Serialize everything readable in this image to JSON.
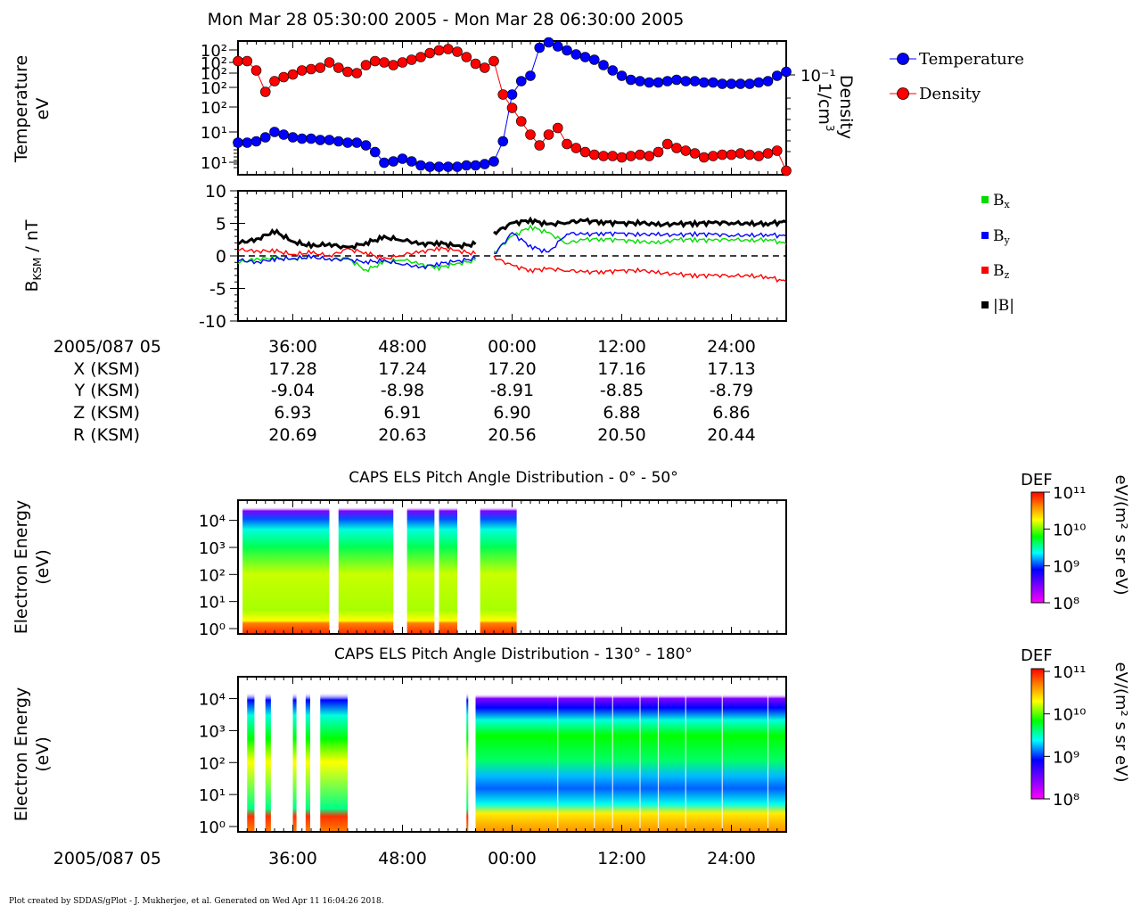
{
  "page_title": "Mon Mar 28 05:30:00 2005 - Mon Mar 28 06:30:00 2005",
  "footer": "Plot created by SDDAS/gPlot - J. Mukherjee, et al.  Generated on Wed Apr 11 16:04:26 2018.",
  "colors": {
    "temperature": "#0000ff",
    "density": "#ff0000",
    "bx": "#00dd00",
    "by": "#0000ff",
    "bz": "#ff0000",
    "bmag": "#000000"
  },
  "chart_data": [
    {
      "type": "scatter",
      "panel": "plasma-moments",
      "ylabel_left": [
        "Temperature",
        "eV"
      ],
      "ylabel_right": [
        "Density",
        "1/cm³"
      ],
      "left_tick_labels": [
        "10²",
        "10²",
        "10²",
        "10²",
        "10²",
        "10¹",
        "10¹"
      ],
      "right_tick_labels": [
        "10⁻¹"
      ],
      "legend_position": "right",
      "series": [
        {
          "name": "Temperature",
          "marker": "circle",
          "x": [
            0,
            1,
            2,
            3,
            4,
            5,
            6,
            7,
            8,
            9,
            10,
            11,
            12,
            13,
            14,
            15,
            16,
            17,
            18,
            19,
            20,
            21,
            22,
            23,
            24,
            25,
            26,
            27,
            28,
            29,
            30,
            31,
            32,
            33,
            34,
            35,
            36,
            37,
            38,
            39,
            40,
            41,
            42,
            43,
            44,
            45,
            46,
            47,
            48,
            49,
            50,
            51,
            52,
            53,
            54,
            55,
            56,
            57,
            58,
            59,
            60
          ],
          "y": [
            0.24,
            0.24,
            0.25,
            0.28,
            0.32,
            0.3,
            0.28,
            0.27,
            0.27,
            0.26,
            0.26,
            0.25,
            0.24,
            0.24,
            0.22,
            0.17,
            0.09,
            0.1,
            0.12,
            0.1,
            0.07,
            0.06,
            0.06,
            0.06,
            0.06,
            0.07,
            0.07,
            0.08,
            0.1,
            0.25,
            0.6,
            0.7,
            0.74,
            0.95,
            0.99,
            0.96,
            0.93,
            0.9,
            0.88,
            0.86,
            0.82,
            0.78,
            0.74,
            0.71,
            0.7,
            0.69,
            0.69,
            0.7,
            0.71,
            0.7,
            0.7,
            0.69,
            0.69,
            0.68,
            0.68,
            0.68,
            0.68,
            0.69,
            0.7,
            0.74,
            0.77
          ]
        },
        {
          "name": "Density",
          "marker": "circle",
          "x": [
            0,
            1,
            2,
            3,
            4,
            5,
            6,
            7,
            8,
            9,
            10,
            11,
            12,
            13,
            14,
            15,
            16,
            17,
            18,
            19,
            20,
            21,
            22,
            23,
            24,
            25,
            26,
            27,
            28,
            29,
            30,
            31,
            32,
            33,
            34,
            35,
            36,
            37,
            38,
            39,
            40,
            41,
            42,
            43,
            44,
            45,
            46,
            47,
            48,
            49,
            50,
            51,
            52,
            53,
            54,
            55,
            56,
            57,
            58,
            59,
            60
          ],
          "y": [
            0.85,
            0.85,
            0.78,
            0.62,
            0.7,
            0.73,
            0.75,
            0.78,
            0.79,
            0.8,
            0.84,
            0.8,
            0.77,
            0.76,
            0.82,
            0.85,
            0.84,
            0.82,
            0.84,
            0.86,
            0.88,
            0.91,
            0.93,
            0.94,
            0.92,
            0.88,
            0.83,
            0.8,
            0.85,
            0.6,
            0.5,
            0.4,
            0.3,
            0.22,
            0.3,
            0.35,
            0.23,
            0.2,
            0.17,
            0.15,
            0.14,
            0.14,
            0.13,
            0.14,
            0.15,
            0.14,
            0.17,
            0.23,
            0.2,
            0.18,
            0.16,
            0.13,
            0.14,
            0.15,
            0.15,
            0.16,
            0.15,
            0.14,
            0.16,
            0.18,
            0.03
          ]
        }
      ]
    },
    {
      "type": "line",
      "panel": "magnetic-field",
      "ylabel": "B_KSM / nT",
      "ylim": [
        -10,
        10
      ],
      "y_ticks": [
        -10,
        -5,
        0,
        5,
        10
      ],
      "series": [
        {
          "name": "Bx",
          "x": [
            0,
            2,
            4,
            6,
            8,
            10,
            12,
            14,
            16,
            18,
            20,
            22,
            24,
            26,
            27,
            28,
            30,
            32,
            34,
            36,
            38,
            40,
            42,
            44,
            46,
            48,
            50,
            52,
            54,
            56,
            58,
            60
          ],
          "y": [
            -1.0,
            -0.5,
            -0.3,
            -0.5,
            -0.2,
            -0.5,
            -0.4,
            -2.2,
            -1.0,
            -0.5,
            -1.3,
            -1.8,
            -1.2,
            -0.7,
            null,
            0.5,
            3.0,
            4.5,
            3.5,
            2.0,
            2.5,
            2.6,
            2.4,
            2.2,
            2.0,
            2.5,
            2.5,
            2.4,
            2.6,
            2.3,
            2.6,
            1.8
          ]
        },
        {
          "name": "By",
          "x": [
            0,
            2,
            4,
            6,
            8,
            10,
            12,
            14,
            16,
            18,
            20,
            22,
            24,
            26,
            27,
            28,
            30,
            32,
            34,
            36,
            38,
            40,
            42,
            44,
            46,
            48,
            50,
            52,
            54,
            56,
            58,
            60
          ],
          "y": [
            -0.6,
            -1.0,
            -0.5,
            -0.4,
            -0.2,
            -0.5,
            -0.6,
            -0.9,
            -0.8,
            -1.2,
            -1.8,
            -1.2,
            -0.8,
            -0.4,
            null,
            0.2,
            3.5,
            1.5,
            0.5,
            3.5,
            3.3,
            3.5,
            3.4,
            3.3,
            3.3,
            3.2,
            3.4,
            3.3,
            3.2,
            3.1,
            3.3,
            3.0
          ]
        },
        {
          "name": "Bz",
          "x": [
            0,
            2,
            4,
            6,
            8,
            10,
            12,
            14,
            16,
            18,
            20,
            22,
            24,
            26,
            27,
            28,
            30,
            32,
            34,
            36,
            38,
            40,
            42,
            44,
            46,
            48,
            50,
            52,
            54,
            56,
            58,
            60
          ],
          "y": [
            1.0,
            0.7,
            0.8,
            0.2,
            0.5,
            0.0,
            1.0,
            0.5,
            -0.5,
            0.2,
            0.6,
            1.2,
            0.8,
            0.3,
            null,
            -0.2,
            -1.5,
            -2.2,
            -2.0,
            -2.2,
            -2.5,
            -2.4,
            -2.3,
            -2.2,
            -2.6,
            -2.8,
            -3.0,
            -3.0,
            -3.0,
            -3.1,
            -3.2,
            -4.0
          ]
        },
        {
          "name": "|B|",
          "x": [
            0,
            2,
            4,
            6,
            8,
            10,
            12,
            14,
            16,
            18,
            20,
            22,
            24,
            26,
            27,
            28,
            30,
            32,
            34,
            36,
            38,
            40,
            42,
            44,
            46,
            48,
            50,
            52,
            54,
            56,
            58,
            60
          ],
          "y": [
            2.0,
            2.5,
            3.8,
            2.2,
            1.5,
            1.8,
            1.2,
            2.0,
            2.8,
            2.5,
            1.8,
            2.0,
            1.5,
            1.8,
            null,
            3.5,
            5.0,
            5.5,
            4.8,
            5.2,
            5.4,
            5.2,
            5.0,
            5.1,
            4.8,
            4.9,
            5.0,
            5.1,
            5.1,
            4.9,
            5.0,
            5.2
          ]
        }
      ],
      "legend_position": "right"
    },
    {
      "type": "table",
      "panel": "ephemeris",
      "row_labels": [
        "2005/087 05",
        "X (KSM)",
        "Y (KSM)",
        "Z (KSM)",
        "R (KSM)"
      ],
      "columns": [
        {
          "time": "36:00",
          "X": "17.28",
          "Y": "-9.04",
          "Z": "6.93",
          "R": "20.69"
        },
        {
          "time": "48:00",
          "X": "17.24",
          "Y": "-8.98",
          "Z": "6.91",
          "R": "20.63"
        },
        {
          "time": "00:00",
          "X": "17.20",
          "Y": "-8.91",
          "Z": "6.90",
          "R": "20.56"
        },
        {
          "time": "12:00",
          "X": "17.16",
          "Y": "-8.85",
          "Z": "6.88",
          "R": "20.50"
        },
        {
          "time": "24:00",
          "X": "17.13",
          "Y": "-8.79",
          "Z": "6.86",
          "R": "20.44"
        }
      ]
    },
    {
      "type": "heatmap",
      "panel": "pad-low",
      "title": "CAPS ELS Pitch Angle Distribution - 0° - 50°",
      "ylabel": [
        "Electron Energy",
        "(eV)"
      ],
      "y_tick_labels": [
        "10⁰",
        "10¹",
        "10²",
        "10³",
        "10⁴"
      ],
      "colorbar": {
        "label": "DEF",
        "unit": "eV/(m² s sr eV)",
        "tick_labels": [
          "10¹¹",
          "10¹⁰",
          "10⁹",
          "10⁸"
        ]
      },
      "data_columns_minutes": [
        [
          0.5,
          10
        ],
        [
          11,
          17
        ],
        [
          18.5,
          21.5
        ],
        [
          22,
          24
        ],
        [
          26.5,
          30.5
        ]
      ]
    },
    {
      "type": "heatmap",
      "panel": "pad-high",
      "title": "CAPS ELS Pitch Angle Distribution - 130° - 180°",
      "ylabel": [
        "Electron Energy",
        "(eV)"
      ],
      "y_tick_labels": [
        "10⁰",
        "10¹",
        "10²",
        "10³",
        "10⁴"
      ],
      "colorbar": {
        "label": "DEF",
        "unit": "eV/(m² s sr eV)",
        "tick_labels": [
          "10¹¹",
          "10¹⁰",
          "10⁹",
          "10⁸"
        ]
      },
      "data_columns_minutes": [
        [
          1,
          1.8
        ],
        [
          3,
          3.6
        ],
        [
          6,
          6.4
        ],
        [
          7.4,
          7.9
        ],
        [
          9,
          12
        ],
        [
          25,
          25.2
        ],
        [
          26,
          60
        ]
      ]
    }
  ],
  "x_axis": {
    "start_label": "2005/087 05",
    "tick_labels": [
      "36:00",
      "48:00",
      "00:00",
      "12:00",
      "24:00"
    ],
    "tick_minutes": [
      6,
      18,
      30,
      42,
      54
    ]
  },
  "legend": {
    "temperature": "Temperature",
    "density": "Density",
    "bx_base": "B",
    "bx_sub": "x",
    "by_base": "B",
    "by_sub": "y",
    "bz_base": "B",
    "bz_sub": "z",
    "bmag": "|B|"
  },
  "labels": {
    "temperature_left": "Temperature",
    "temperature_unit": "eV",
    "density_right": "Density",
    "density_unit": "1/cm",
    "density_unit_sup": "3",
    "b_label_base": "B",
    "b_label_sub": "KSM",
    "b_label_tail": " / nT"
  }
}
